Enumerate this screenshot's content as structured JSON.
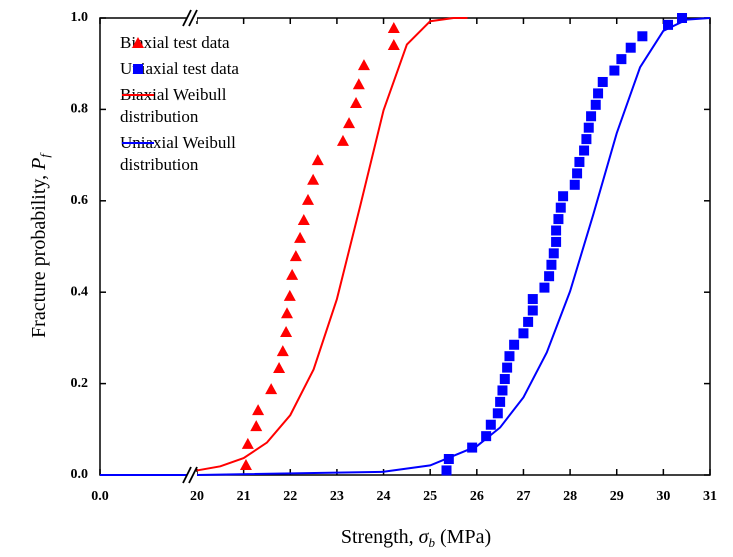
{
  "chart_data": {
    "type": "scatter",
    "xlabel": {
      "text": "Strength,",
      "symbol": "σ",
      "subscript": "b",
      "unit": "(MPa)"
    },
    "ylabel": {
      "text": "Fracture probability,",
      "symbol": "P",
      "subscript": "f"
    },
    "xlim": [
      0,
      31
    ],
    "xbreak": 20,
    "ylim": [
      0,
      1
    ],
    "xticks": [
      {
        "value": 0,
        "label": "0.0"
      },
      20,
      21,
      22,
      23,
      24,
      25,
      26,
      27,
      28,
      29,
      30,
      31
    ],
    "yticks": [
      {
        "value": 0,
        "label": "0.0"
      },
      0.2,
      0.4,
      0.6,
      0.8,
      {
        "value": 1,
        "label": "1.0"
      }
    ],
    "series": [
      {
        "name": "Biaxial test data",
        "color": "#ff0000",
        "mode": "markers",
        "marker": "triangle",
        "x": [
          21.05,
          21.09,
          21.27,
          21.31,
          21.59,
          21.76,
          21.84,
          21.91,
          21.93,
          21.99,
          22.04,
          22.12,
          22.21,
          22.29,
          22.38,
          22.49,
          22.59,
          23.13,
          23.26,
          23.41,
          23.47,
          23.58,
          24.22,
          24.22
        ],
        "values": [
          0.022,
          0.068,
          0.107,
          0.142,
          0.188,
          0.234,
          0.271,
          0.313,
          0.354,
          0.392,
          0.438,
          0.479,
          0.519,
          0.558,
          0.602,
          0.646,
          0.689,
          0.731,
          0.77,
          0.814,
          0.855,
          0.897,
          0.941,
          0.978
        ]
      },
      {
        "name": "Uniaxial test data",
        "color": "#0000ff",
        "mode": "markers",
        "marker": "square",
        "x": [
          25.35,
          25.4,
          25.9,
          26.2,
          26.3,
          26.45,
          26.5,
          26.55,
          26.6,
          26.65,
          26.7,
          26.8,
          27.0,
          27.1,
          27.2,
          27.2,
          27.45,
          27.55,
          27.6,
          27.65,
          27.7,
          27.7,
          27.75,
          27.8,
          27.85,
          28.1,
          28.15,
          28.2,
          28.3,
          28.35,
          28.4,
          28.45,
          28.55,
          28.6,
          28.7,
          28.95,
          29.1,
          29.3,
          29.55,
          30.1,
          30.4
        ],
        "values": [
          0.01,
          0.035,
          0.06,
          0.085,
          0.11,
          0.135,
          0.16,
          0.185,
          0.21,
          0.235,
          0.26,
          0.285,
          0.31,
          0.335,
          0.36,
          0.385,
          0.41,
          0.435,
          0.46,
          0.485,
          0.51,
          0.535,
          0.56,
          0.585,
          0.61,
          0.635,
          0.66,
          0.685,
          0.71,
          0.735,
          0.76,
          0.785,
          0.81,
          0.835,
          0.86,
          0.885,
          0.91,
          0.935,
          0.96,
          0.985,
          1.0
        ]
      },
      {
        "name": "Biaxial Weibull distribution",
        "color": "#ff0000",
        "mode": "line",
        "x": [
          20,
          20.5,
          21,
          21.5,
          22,
          22.5,
          23,
          23.5,
          24,
          24.5,
          25,
          25.5,
          25.8
        ],
        "values": [
          0.01,
          0.019,
          0.037,
          0.071,
          0.131,
          0.231,
          0.385,
          0.589,
          0.798,
          0.942,
          0.993,
          1.0,
          1.0
        ]
      },
      {
        "name": "Uniaxial Weibull distribution",
        "color": "#0000ff",
        "mode": "line",
        "x": [
          0,
          20,
          24,
          25,
          26,
          26.5,
          27,
          27.5,
          28,
          28.5,
          29,
          29.5,
          30,
          30.5,
          31
        ],
        "values": [
          0,
          0,
          0.007,
          0.021,
          0.063,
          0.104,
          0.17,
          0.268,
          0.402,
          0.571,
          0.748,
          0.892,
          0.972,
          0.9965,
          1.0
        ]
      }
    ]
  }
}
